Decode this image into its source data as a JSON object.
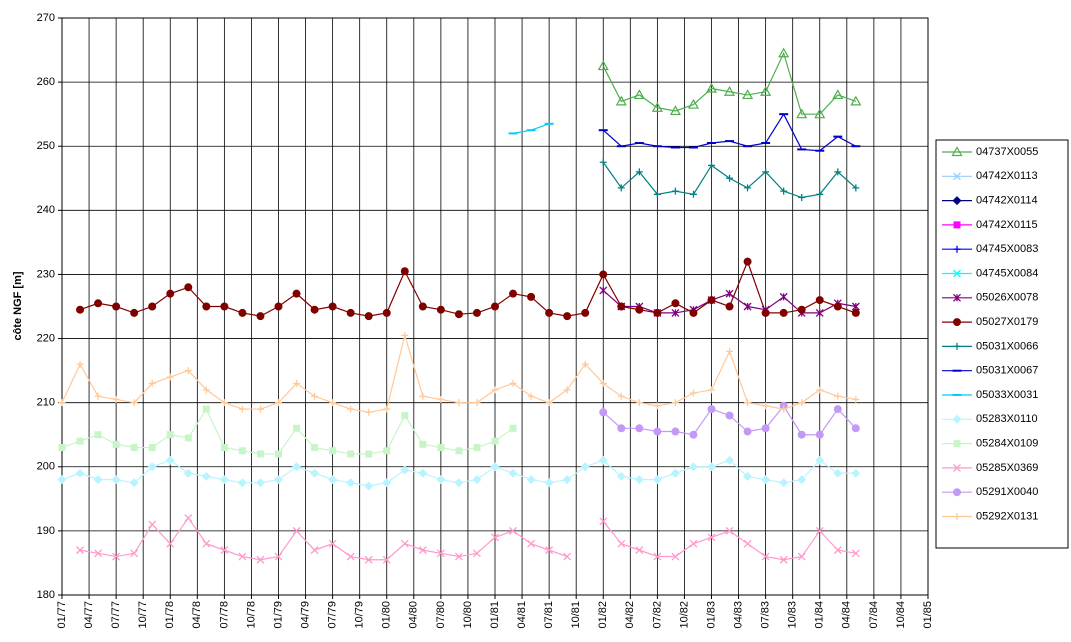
{
  "chart_data": {
    "type": "line",
    "y_label": "côte NGF [m]",
    "ylim": [
      180,
      270
    ],
    "yticks": [
      180,
      190,
      200,
      210,
      220,
      230,
      240,
      250,
      260,
      270
    ],
    "xlim": [
      "01/77",
      "01/85"
    ],
    "xticks": [
      "01/77",
      "04/77",
      "07/77",
      "10/77",
      "01/78",
      "04/78",
      "07/78",
      "10/78",
      "01/79",
      "04/79",
      "07/79",
      "10/79",
      "01/80",
      "04/80",
      "07/80",
      "10/80",
      "01/81",
      "04/81",
      "07/81",
      "10/81",
      "01/82",
      "04/82",
      "07/82",
      "10/82",
      "01/83",
      "04/83",
      "07/83",
      "10/83",
      "01/84",
      "04/84",
      "07/84",
      "10/84",
      "01/85"
    ],
    "grid": true,
    "legend": "right",
    "x": [
      "01/77",
      "03/77",
      "05/77",
      "07/77",
      "09/77",
      "11/77",
      "01/78",
      "03/78",
      "05/78",
      "07/78",
      "09/78",
      "11/78",
      "01/79",
      "03/79",
      "05/79",
      "07/79",
      "09/79",
      "11/79",
      "01/80",
      "03/80",
      "05/80",
      "07/80",
      "09/80",
      "11/80",
      "01/81",
      "03/81",
      "05/81",
      "07/81",
      "09/81",
      "11/81",
      "01/82",
      "03/82",
      "05/82",
      "07/82",
      "09/82",
      "11/82",
      "01/83",
      "03/83",
      "05/83",
      "07/83",
      "09/83",
      "11/83",
      "01/84",
      "03/84",
      "05/84"
    ],
    "series": [
      {
        "name": "04737X0055",
        "color": "#4cae4c",
        "marker": "triangle",
        "values": [
          null,
          null,
          null,
          null,
          null,
          null,
          null,
          null,
          null,
          null,
          null,
          null,
          null,
          null,
          null,
          null,
          null,
          null,
          null,
          null,
          null,
          null,
          null,
          null,
          null,
          null,
          null,
          null,
          null,
          null,
          262.5,
          257,
          258,
          256,
          255.5,
          256.5,
          259,
          258.5,
          258,
          258.5,
          264.5,
          255,
          255,
          258,
          257
        ]
      },
      {
        "name": "04742X0113",
        "color": "#99ccff",
        "marker": "x",
        "values": [
          null,
          null,
          null,
          null,
          null,
          null,
          null,
          null,
          null,
          null,
          null,
          null,
          null,
          null,
          null,
          null,
          null,
          null,
          null,
          null,
          null,
          null,
          null,
          null,
          null,
          null,
          null,
          null,
          null,
          null,
          null,
          null,
          null,
          null,
          null,
          null,
          null,
          null,
          null,
          null,
          null,
          null,
          null,
          null,
          null
        ]
      },
      {
        "name": "04742X0114",
        "color": "#000080",
        "marker": "diamond",
        "values": [
          null,
          null,
          null,
          null,
          null,
          null,
          null,
          null,
          null,
          null,
          null,
          null,
          null,
          null,
          null,
          null,
          null,
          null,
          null,
          null,
          null,
          null,
          null,
          null,
          null,
          null,
          null,
          null,
          null,
          null,
          null,
          null,
          null,
          null,
          null,
          null,
          null,
          null,
          null,
          null,
          null,
          null,
          null,
          null,
          null
        ]
      },
      {
        "name": "04742X0115",
        "color": "#ff00ff",
        "marker": "square",
        "values": [
          null,
          null,
          null,
          null,
          null,
          null,
          null,
          null,
          null,
          null,
          null,
          null,
          null,
          null,
          null,
          null,
          null,
          null,
          null,
          null,
          null,
          null,
          null,
          null,
          null,
          null,
          null,
          null,
          null,
          null,
          null,
          null,
          null,
          null,
          null,
          null,
          null,
          null,
          null,
          null,
          null,
          null,
          null,
          null,
          null
        ]
      },
      {
        "name": "04745X0083",
        "color": "#0000ff",
        "marker": "plus",
        "values": [
          null,
          null,
          null,
          null,
          null,
          null,
          null,
          null,
          null,
          null,
          null,
          null,
          null,
          null,
          null,
          null,
          null,
          null,
          null,
          null,
          null,
          null,
          null,
          null,
          null,
          null,
          null,
          null,
          null,
          null,
          null,
          null,
          null,
          null,
          null,
          null,
          null,
          null,
          null,
          null,
          null,
          null,
          null,
          null,
          null
        ]
      },
      {
        "name": "04745X0084",
        "color": "#00ffff",
        "marker": "x",
        "values": [
          null,
          null,
          null,
          null,
          null,
          null,
          null,
          null,
          null,
          null,
          null,
          null,
          null,
          null,
          null,
          null,
          null,
          null,
          null,
          null,
          null,
          null,
          null,
          null,
          null,
          null,
          null,
          null,
          null,
          null,
          null,
          null,
          null,
          null,
          null,
          null,
          null,
          null,
          null,
          null,
          null,
          null,
          null,
          null,
          null
        ]
      },
      {
        "name": "05026X0078",
        "color": "#800080",
        "marker": "asterisk",
        "values": [
          null,
          null,
          null,
          null,
          null,
          null,
          null,
          null,
          null,
          null,
          null,
          null,
          null,
          null,
          null,
          null,
          null,
          null,
          null,
          null,
          null,
          null,
          null,
          null,
          null,
          null,
          null,
          null,
          null,
          null,
          227.5,
          225,
          225,
          224,
          224,
          224.5,
          226,
          227,
          225,
          224.5,
          226.5,
          224,
          224,
          225.5,
          225
        ]
      },
      {
        "name": "05027X0179",
        "color": "#800000",
        "marker": "circle",
        "values": [
          null,
          224.5,
          225.5,
          225,
          224,
          225,
          227,
          228,
          225,
          225,
          224,
          223.5,
          225,
          227,
          224.5,
          225,
          224,
          223.5,
          224,
          230.5,
          225,
          224.5,
          223.8,
          224,
          225,
          227,
          226.5,
          224,
          223.5,
          224,
          230,
          225,
          224.5,
          224,
          225.5,
          224,
          226,
          225,
          232,
          224,
          224,
          224.5,
          226,
          225,
          224
        ]
      },
      {
        "name": "05031X0066",
        "color": "#008080",
        "marker": "plus",
        "values": [
          null,
          null,
          null,
          null,
          null,
          null,
          null,
          null,
          null,
          null,
          null,
          null,
          null,
          null,
          null,
          null,
          null,
          null,
          null,
          null,
          null,
          null,
          null,
          null,
          null,
          null,
          null,
          null,
          null,
          null,
          247.5,
          243.5,
          246,
          242.5,
          243,
          242.5,
          247,
          245,
          243.5,
          246,
          243,
          242,
          242.5,
          246,
          243.5
        ]
      },
      {
        "name": "05031X0067",
        "color": "#0000cc",
        "marker": "dash",
        "values": [
          null,
          null,
          null,
          null,
          null,
          null,
          null,
          null,
          null,
          null,
          null,
          null,
          null,
          null,
          null,
          null,
          null,
          null,
          null,
          null,
          null,
          null,
          null,
          null,
          null,
          null,
          null,
          null,
          null,
          null,
          252.5,
          250,
          250.5,
          250,
          249.8,
          249.8,
          250.5,
          250.8,
          250,
          250.5,
          255,
          249.5,
          249.3,
          251.5,
          250
        ]
      },
      {
        "name": "05033X0031",
        "color": "#00ccff",
        "marker": "dash",
        "values": [
          null,
          null,
          null,
          null,
          null,
          null,
          null,
          null,
          null,
          null,
          null,
          null,
          null,
          null,
          null,
          null,
          null,
          null,
          null,
          null,
          null,
          null,
          null,
          null,
          null,
          252,
          252.5,
          253.5,
          null,
          null,
          null,
          null,
          null,
          null,
          null,
          null,
          null,
          null,
          null,
          null,
          null,
          null,
          null,
          null,
          null
        ]
      },
      {
        "name": "05283X0110",
        "color": "#b8f4ff",
        "marker": "diamond",
        "values": [
          198,
          199,
          198,
          198,
          197.5,
          200,
          201,
          199,
          198.5,
          198,
          197.5,
          197.5,
          198,
          200,
          199,
          198,
          197.5,
          197,
          197.5,
          199.5,
          199,
          198,
          197.5,
          198,
          200,
          199,
          198,
          197.5,
          198,
          200,
          201,
          198.5,
          198,
          198,
          199,
          200,
          200,
          201,
          198.5,
          198,
          197.5,
          198,
          201,
          199,
          199
        ]
      },
      {
        "name": "05284X0109",
        "color": "#c8f5c8",
        "marker": "square",
        "values": [
          203,
          204,
          205,
          203.5,
          203,
          203,
          205,
          204.5,
          209,
          203,
          202.5,
          202,
          202,
          206,
          203,
          202.5,
          202,
          202,
          202.5,
          208,
          203.5,
          203,
          202.5,
          203,
          204,
          206,
          null,
          null,
          null,
          null,
          null,
          null,
          null,
          null,
          null,
          null,
          null,
          null,
          null,
          null,
          null,
          null,
          null,
          null,
          null
        ]
      },
      {
        "name": "05285X0369",
        "color": "#ff99cc",
        "marker": "x",
        "values": [
          null,
          187,
          186.5,
          186,
          186.5,
          191,
          188,
          192,
          188,
          187,
          186,
          185.5,
          186,
          190,
          187,
          188,
          186,
          185.5,
          185.5,
          188,
          187,
          186.5,
          186,
          186.5,
          189,
          190,
          188,
          187,
          186,
          null,
          191.5,
          188,
          187,
          186,
          186,
          188,
          189,
          190,
          188,
          186,
          185.5,
          186,
          190,
          187,
          186.5
        ]
      },
      {
        "name": "05291X0040",
        "color": "#c399f5",
        "marker": "circle",
        "values": [
          null,
          null,
          null,
          null,
          null,
          null,
          null,
          null,
          null,
          null,
          null,
          null,
          null,
          null,
          null,
          null,
          null,
          null,
          null,
          null,
          null,
          null,
          null,
          null,
          null,
          null,
          null,
          null,
          null,
          null,
          208.5,
          206,
          206,
          205.5,
          205.5,
          205,
          209,
          208,
          205.5,
          206,
          209.5,
          205,
          205,
          209,
          206
        ]
      },
      {
        "name": "05292X0131",
        "color": "#ffc999",
        "marker": "plus",
        "values": [
          210,
          216,
          211,
          210.5,
          210,
          213,
          214,
          215,
          212,
          210,
          209,
          209,
          210,
          213,
          211,
          210,
          209,
          208.5,
          209,
          220.5,
          211,
          210.5,
          210,
          210,
          212,
          213,
          211,
          210,
          212,
          216,
          213,
          211,
          210,
          209.5,
          210,
          211.5,
          212,
          218,
          210,
          209.5,
          209,
          210,
          212,
          211,
          210.5
        ]
      }
    ]
  }
}
